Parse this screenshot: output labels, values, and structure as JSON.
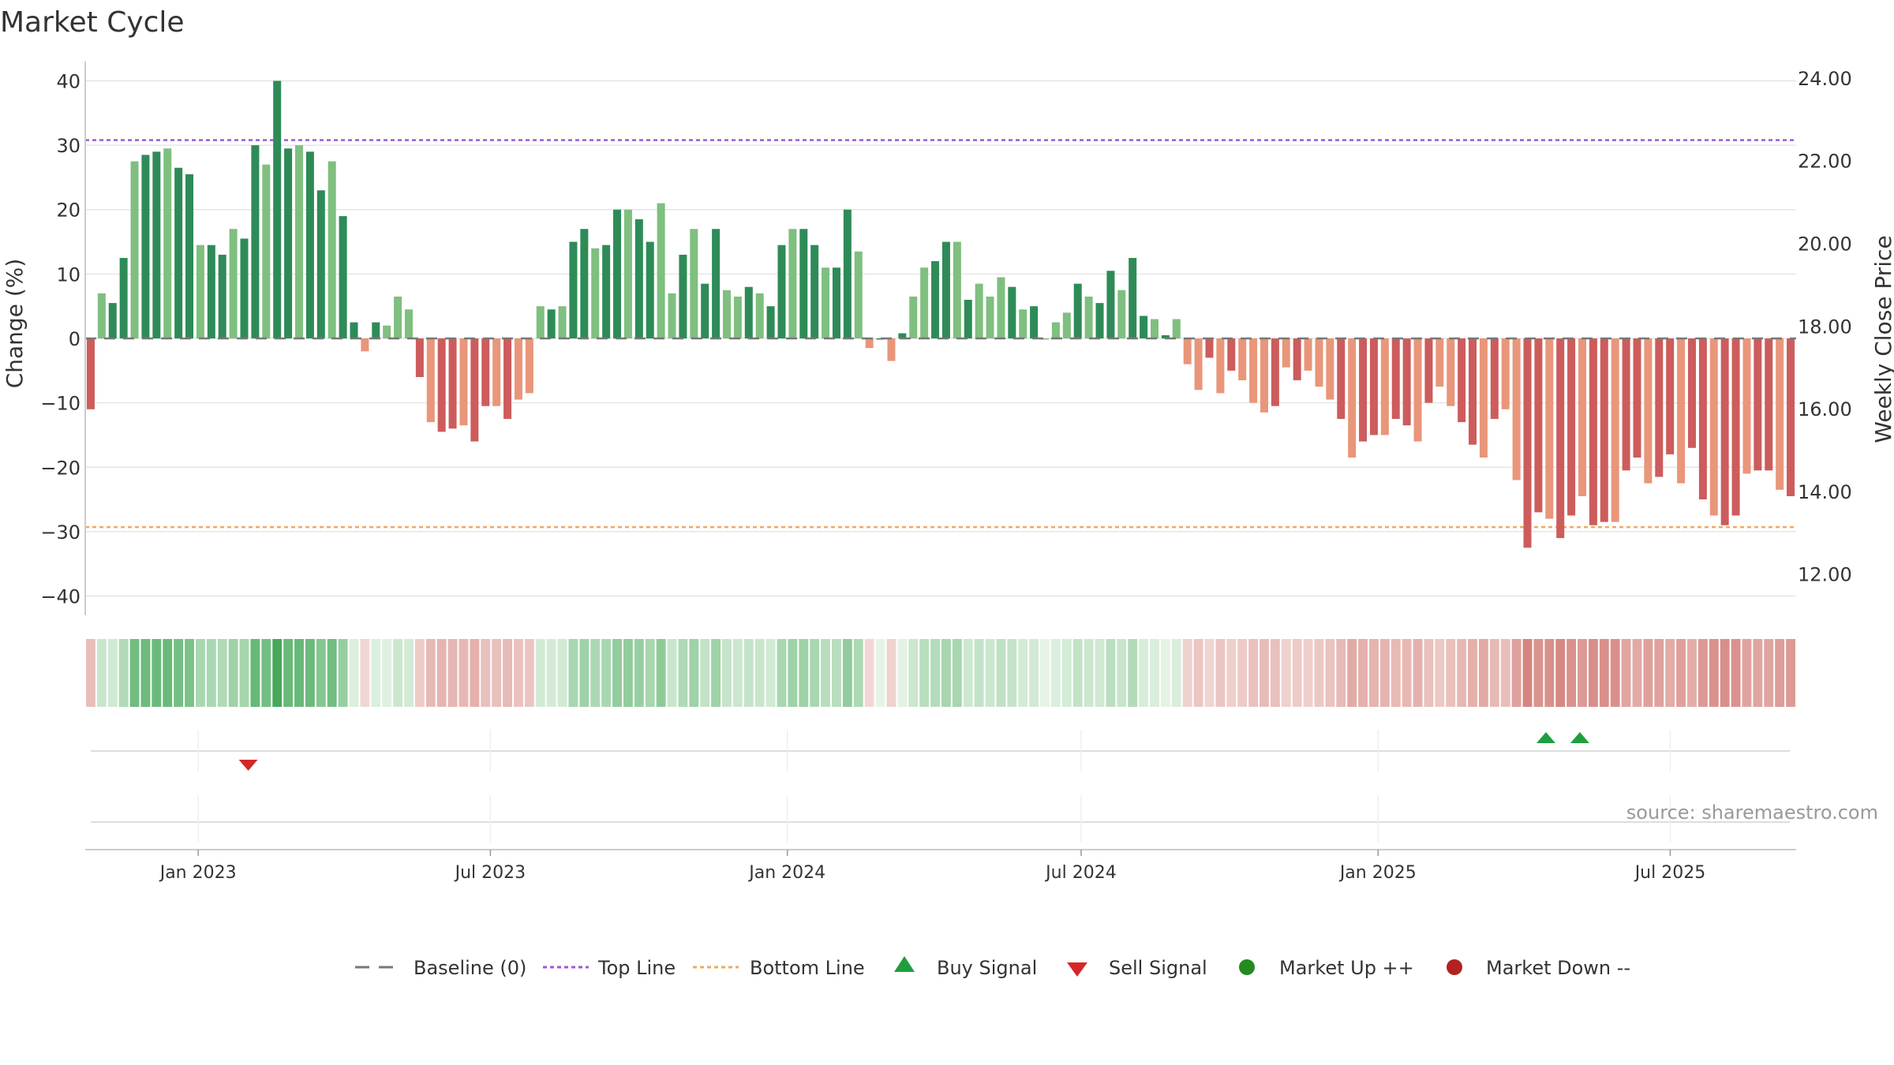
{
  "chart_data": {
    "type": "bar",
    "title": "Market Cycle",
    "ylabel": "Change (%)",
    "y2label": "Weekly Close Price",
    "ylim": [
      -43,
      43
    ],
    "y2lim": [
      11.0,
      24.4
    ],
    "yticks": [
      40,
      30,
      20,
      10,
      0,
      -10,
      -20,
      -30,
      -40
    ],
    "ytick_labels": [
      "40",
      "30",
      "20",
      "10",
      "0",
      "−10",
      "−20",
      "−30",
      "−40"
    ],
    "y2ticks": [
      24,
      22,
      20,
      18,
      16,
      14,
      12
    ],
    "y2tick_labels": [
      "24.00",
      "22.00",
      "20.00",
      "18.00",
      "16.00",
      "14.00",
      "12.00"
    ],
    "top_line": 30.8,
    "bottom_line": -29.3,
    "baseline": 0,
    "x_start": "2022-10-23",
    "x_end": "2025-09-17",
    "weeks": 157,
    "xticks": [
      {
        "date": "2023-01-01",
        "label": "Jan 2023"
      },
      {
        "date": "2023-07-01",
        "label": "Jul 2023"
      },
      {
        "date": "2024-01-01",
        "label": "Jan 2024"
      },
      {
        "date": "2024-07-01",
        "label": "Jul 2024"
      },
      {
        "date": "2025-01-01",
        "label": "Jan 2025"
      },
      {
        "date": "2025-07-01",
        "label": "Jul 2025"
      }
    ],
    "values": [
      -11,
      7,
      5.5,
      12.5,
      27.5,
      28.5,
      29,
      29.5,
      26.5,
      25.5,
      14.5,
      14.5,
      13,
      17,
      15.5,
      30,
      27,
      40,
      29.5,
      30,
      29,
      23,
      27.5,
      19,
      2.5,
      -2,
      2.5,
      2,
      6.5,
      4.5,
      -6,
      -13,
      -14.5,
      -14,
      -13.5,
      -16,
      -10.5,
      -10.5,
      -12.5,
      -9.5,
      -8.5,
      5,
      4.5,
      5,
      15,
      17,
      14,
      14.5,
      20,
      20,
      18.5,
      15,
      21,
      7,
      13,
      17,
      8.5,
      17,
      7.5,
      6.5,
      8,
      7,
      5,
      14.5,
      17,
      17,
      14.5,
      11,
      11,
      20,
      13.5,
      -1.5,
      0,
      -3.5,
      0.8,
      6.5,
      11,
      12,
      15,
      15,
      6,
      8.5,
      6.5,
      9.5,
      8,
      4.5,
      5,
      0,
      2.5,
      4,
      8.5,
      6.5,
      5.5,
      10.5,
      7.5,
      12.5,
      3.5,
      3,
      0.5,
      3,
      -4,
      -8,
      -3,
      -8.5,
      -5,
      -6.5,
      -10,
      -11.5,
      -10.5,
      -4.5,
      -6.5,
      -5,
      -7.5,
      -9.5,
      -12.5,
      -18.5,
      -16,
      -15,
      -15,
      -12.5,
      -13.5,
      -16,
      -10,
      -7.5,
      -10.5,
      -13,
      -16.5,
      -18.5,
      -12.5,
      -11,
      -22,
      -32.5,
      -27,
      -28,
      -31,
      -27.5,
      -24.5,
      -29,
      -28.5,
      -28.5,
      -20.5,
      -18.5,
      -22.5,
      -21.5,
      -18,
      -22.5,
      -17,
      -25,
      -27.5,
      -29,
      -27.5,
      -21,
      -20.5,
      -20.5,
      -23.5,
      -24.5
    ],
    "marker_counts": [
      {
        "value": 1,
        "count": 71
      },
      {
        "value": 1,
        "count": 1
      },
      {
        "value": 1,
        "count": 1
      }
    ],
    "signals": [
      {
        "type": "sell",
        "date": "2023-02-01"
      },
      {
        "type": "buy",
        "date": "2025-04-15"
      },
      {
        "type": "buy",
        "date": "2025-05-06"
      }
    ],
    "legend": [
      {
        "key": "baseline",
        "label": "Baseline (0)",
        "color": "#777777"
      },
      {
        "key": "top",
        "label": "Top Line",
        "color": "#9b59d6"
      },
      {
        "key": "bottom",
        "label": "Bottom Line",
        "color": "#f0a860"
      },
      {
        "key": "buy",
        "label": "Buy Signal",
        "color": "#1f9e3e"
      },
      {
        "key": "sell",
        "label": "Sell Signal",
        "color": "#d62728"
      },
      {
        "key": "up",
        "label": "Market Up ++",
        "color": "#228b22"
      },
      {
        "key": "down",
        "label": "Market Down --",
        "color": "#b22222"
      }
    ],
    "source": "source: sharemaestro.com",
    "colors": {
      "pos_dark": "#2e8b57",
      "pos_light": "#7fbf7f",
      "neg_dark": "#cd5c5c",
      "neg_light": "#e9967a",
      "grid": "#e6e6e6",
      "axis": "#cccccc"
    }
  }
}
